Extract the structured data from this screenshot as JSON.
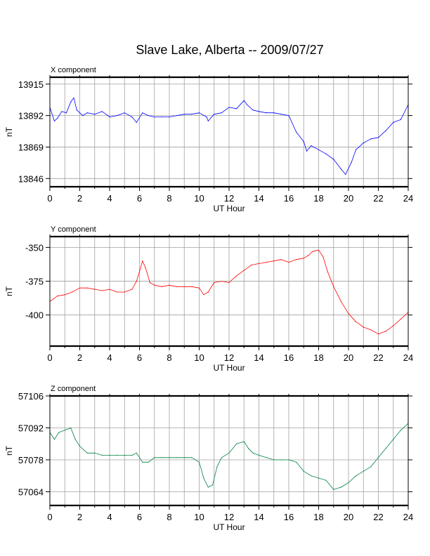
{
  "figure": {
    "title": "Slave Lake, Alberta -- 2009/07/27"
  },
  "colors": {
    "x": "#0000ff",
    "y": "#ff0000",
    "z": "#008040",
    "grid": "#a0a0a0",
    "frame": "#000000"
  },
  "chart_data": [
    {
      "type": "line",
      "panel_title": "X component",
      "xlabel": "UT Hour",
      "ylabel": "nT",
      "xlim": [
        0,
        24
      ],
      "ylim": [
        13840,
        13920
      ],
      "xticks": [
        0,
        2,
        4,
        6,
        8,
        10,
        12,
        14,
        16,
        18,
        20,
        22,
        24
      ],
      "yticks": [
        13846,
        13869,
        13892,
        13915
      ],
      "grid": true,
      "series": [
        {
          "color": "#0000ff",
          "x": [
            0,
            0.3,
            0.5,
            0.8,
            1.1,
            1.4,
            1.6,
            1.8,
            2.2,
            2.5,
            3.0,
            3.5,
            4.0,
            4.5,
            5.0,
            5.5,
            5.8,
            6.2,
            6.6,
            7.0,
            7.5,
            8.0,
            8.5,
            9.0,
            9.5,
            10.0,
            10.5,
            10.6,
            11.0,
            11.5,
            12.0,
            12.5,
            13.0,
            13.2,
            13.6,
            14.0,
            14.5,
            15.0,
            15.5,
            16.0,
            16.5,
            17.0,
            17.2,
            17.5,
            18.0,
            18.5,
            19.0,
            19.5,
            19.8,
            20.2,
            20.5,
            21.0,
            21.5,
            22.0,
            22.5,
            23.0,
            23.5,
            24.0
          ],
          "y": [
            13898,
            13888,
            13890,
            13895,
            13894,
            13902,
            13905,
            13896,
            13892,
            13894,
            13893,
            13895,
            13891,
            13892,
            13894,
            13891,
            13887,
            13894,
            13892,
            13891,
            13891,
            13891,
            13892,
            13893,
            13893,
            13894,
            13891,
            13888,
            13893,
            13894,
            13898,
            13897,
            13903,
            13900,
            13896,
            13895,
            13894,
            13894,
            13893,
            13892,
            13880,
            13873,
            13866,
            13870,
            13867,
            13864,
            13860,
            13853,
            13849,
            13858,
            13867,
            13872,
            13875,
            13876,
            13881,
            13887,
            13889,
            13900
          ]
        }
      ]
    },
    {
      "type": "line",
      "panel_title": "Y component",
      "xlabel": "UT Hour",
      "ylabel": "nT",
      "xlim": [
        0,
        24
      ],
      "ylim": [
        -423,
        -342
      ],
      "xticks": [
        0,
        2,
        4,
        6,
        8,
        10,
        12,
        14,
        16,
        18,
        20,
        22,
        24
      ],
      "yticks": [
        -350,
        -375,
        -400
      ],
      "grid": true,
      "series": [
        {
          "color": "#ff0000",
          "x": [
            0,
            0.5,
            1.0,
            1.5,
            2.0,
            2.5,
            3.0,
            3.5,
            4.0,
            4.5,
            5.0,
            5.5,
            5.8,
            6.0,
            6.2,
            6.4,
            6.7,
            7.0,
            7.5,
            8.0,
            8.5,
            9.0,
            9.5,
            10.0,
            10.3,
            10.6,
            11.0,
            11.5,
            12.0,
            12.5,
            13.0,
            13.5,
            14.0,
            14.5,
            15.0,
            15.5,
            16.0,
            16.5,
            17.0,
            17.3,
            17.6,
            18.0,
            18.3,
            18.6,
            19.0,
            19.5,
            20.0,
            20.5,
            21.0,
            21.5,
            22.0,
            22.5,
            23.0,
            23.5,
            24.0
          ],
          "y": [
            -390,
            -386,
            -385,
            -383,
            -380,
            -380,
            -381,
            -382,
            -381,
            -383,
            -383,
            -381,
            -375,
            -368,
            -360,
            -365,
            -376,
            -378,
            -379,
            -378,
            -379,
            -379,
            -379,
            -380,
            -385,
            -383,
            -376,
            -375,
            -376,
            -371,
            -367,
            -363,
            -362,
            -361,
            -360,
            -359,
            -361,
            -359,
            -358,
            -356,
            -353,
            -352,
            -357,
            -368,
            -379,
            -390,
            -399,
            -405,
            -409,
            -411,
            -414,
            -412,
            -408,
            -403,
            -398
          ]
        }
      ]
    },
    {
      "type": "line",
      "panel_title": "Z component",
      "xlabel": "UT Hour",
      "ylabel": "nT",
      "xlim": [
        0,
        24
      ],
      "ylim": [
        57058,
        57106
      ],
      "xticks": [
        0,
        2,
        4,
        6,
        8,
        10,
        12,
        14,
        16,
        18,
        20,
        22,
        24
      ],
      "yticks": [
        57064,
        57078,
        57092,
        57106
      ],
      "grid": true,
      "series": [
        {
          "color": "#008040",
          "x": [
            0,
            0.3,
            0.6,
            1.0,
            1.4,
            1.7,
            2.0,
            2.5,
            3.0,
            3.5,
            4.0,
            4.5,
            5.0,
            5.5,
            5.8,
            6.2,
            6.6,
            7.0,
            7.5,
            8.0,
            8.5,
            9.0,
            9.5,
            10.0,
            10.3,
            10.6,
            10.9,
            11.2,
            11.5,
            12.0,
            12.5,
            13.0,
            13.3,
            13.6,
            14.0,
            14.5,
            15.0,
            15.5,
            16.0,
            16.5,
            17.0,
            17.5,
            18.0,
            18.5,
            19.0,
            19.5,
            20.0,
            20.5,
            21.0,
            21.5,
            22.0,
            22.5,
            23.0,
            23.5,
            24.0
          ],
          "y": [
            57090,
            57087,
            57090,
            57091,
            57092,
            57087,
            57084,
            57081,
            57081,
            57080,
            57080,
            57080,
            57080,
            57080,
            57081,
            57077,
            57077,
            57079,
            57079,
            57079,
            57079,
            57079,
            57079,
            57077,
            57070,
            57066,
            57067,
            57075,
            57079,
            57081,
            57085,
            57086,
            57083,
            57081,
            57080,
            57079,
            57078,
            57078,
            57078,
            57077,
            57073,
            57071,
            57070,
            57069,
            57065,
            57066,
            57068,
            57071,
            57073,
            57075,
            57079,
            57083,
            57087,
            57091,
            57094
          ]
        }
      ]
    }
  ]
}
